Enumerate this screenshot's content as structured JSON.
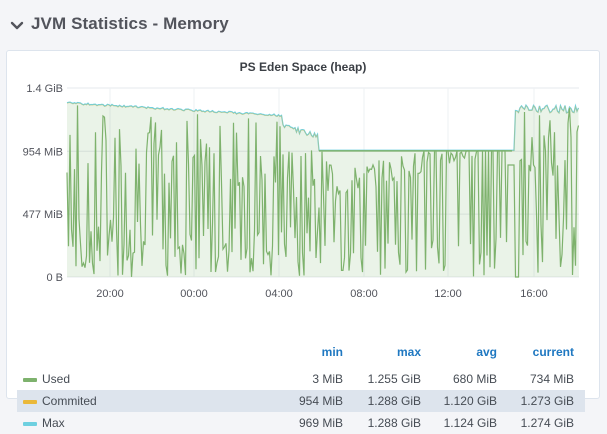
{
  "row": {
    "title": "JVM Statistics - Memory"
  },
  "panel": {
    "title": "PS Eden Space (heap)"
  },
  "chart_data": {
    "type": "line",
    "y_ticks": [
      "1.4 GiB",
      "954 MiB",
      "477 MiB",
      "0 B"
    ],
    "x_ticks": [
      "20:00",
      "00:00",
      "04:00",
      "08:00",
      "12:00",
      "16:00"
    ],
    "y_range_mib": [
      0,
      1434
    ],
    "series": [
      {
        "name": "Used",
        "color": "#7eb26d",
        "min": "3 MiB",
        "max": "1.255 GiB",
        "avg": "680 MiB",
        "current": "734 MiB"
      },
      {
        "name": "Commited",
        "color": "#eab839",
        "min": "954 MiB",
        "max": "1.288 GiB",
        "avg": "1.120 GiB",
        "current": "1.273 GiB"
      },
      {
        "name": "Max",
        "color": "#6ed0e0",
        "min": "969 MiB",
        "max": "1.288 GiB",
        "avg": "1.124 GiB",
        "current": "1.274 GiB"
      }
    ]
  },
  "legend": {
    "headers": {
      "min": "min",
      "max": "max",
      "avg": "avg",
      "current": "current"
    }
  }
}
